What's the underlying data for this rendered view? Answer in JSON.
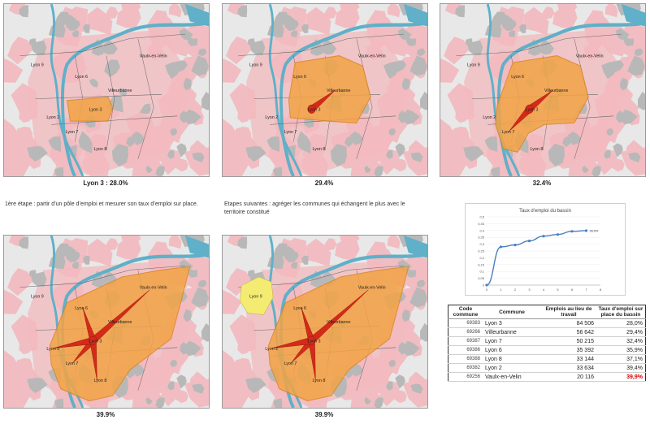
{
  "colors": {
    "background_map": "#e8e8e8",
    "urban_pink": "#f3b9be",
    "built_grey": "#b8b8b8",
    "river": "#5fb0c8",
    "basin_orange": "#f2a445",
    "basin_edge": "#d98420",
    "flows_red": "#d42a1a",
    "lyon9_yellow": "#f4ec72",
    "highlight_rate": "#d10000",
    "chart_line": "#4a7fc1"
  },
  "maps": [
    {
      "caption": "Lyon 3 : 28.0%",
      "labels": [
        "Lyon 9",
        "Lyon 6",
        "Vaulx-en-Velin",
        "Villeurbanne",
        "Lyon 3",
        "Lyon 2",
        "Lyon 7",
        "Lyon 8"
      ]
    },
    {
      "caption": "29.4%",
      "labels": [
        "Lyon 9",
        "Lyon 6",
        "Vaulx-en-Velin",
        "Villeurbanne",
        "Lyon 3",
        "Lyon 2",
        "Lyon 7",
        "Lyon 8"
      ]
    },
    {
      "caption": "32.4%",
      "labels": [
        "Lyon 9",
        "Lyon 6",
        "Vaulx-en-Velin",
        "Villeurbanne",
        "Lyon 3",
        "Lyon 2",
        "Lyon 7",
        "Lyon 8"
      ]
    },
    {
      "caption": "39.9%",
      "labels": [
        "Lyon 9",
        "Lyon 6",
        "Vaulx-en-Velin",
        "Villeurbanne",
        "Lyon 3",
        "Lyon 2",
        "Lyon 7",
        "Lyon 8"
      ]
    },
    {
      "caption": "39.9%",
      "labels": [
        "Lyon 9",
        "Lyon 6",
        "Vaulx-en-Velin",
        "Villeurbanne",
        "Lyon 3",
        "Lyon 2",
        "Lyon 7",
        "Lyon 8"
      ]
    }
  ],
  "notes": {
    "step1": "1ère étape : partir d’un pôle d’emploi et mesurer son taux d’emploi sur place.",
    "step2": "Etapes suivantes : agréger les communes qui échangent le plus avec le territoire constitué"
  },
  "chart_data": {
    "type": "line",
    "title": "Taux d'emploi du bassin",
    "x": [
      0,
      1,
      2,
      3,
      4,
      5,
      6,
      7
    ],
    "values": [
      0.0,
      0.28,
      0.294,
      0.324,
      0.359,
      0.371,
      0.394,
      0.399
    ],
    "end_label": "39,9%",
    "xlabel": "",
    "ylabel": "",
    "xlim": [
      0,
      8
    ],
    "ylim": [
      0,
      0.5
    ],
    "yticks": [
      "0",
      "0,05",
      "0,1",
      "0,15",
      "0,2",
      "0,25",
      "0,3",
      "0,35",
      "0,4",
      "0,45",
      "0,5"
    ],
    "xticks": [
      "0",
      "1",
      "2",
      "3",
      "4",
      "5",
      "6",
      "7",
      "8"
    ]
  },
  "table": {
    "headers": {
      "code": "Code commune",
      "commune": "Commune",
      "emplois": "Emplois au lieu de travail",
      "taux": "Taux d'emploi sur place du bassin"
    },
    "rows": [
      {
        "code": "69383",
        "commune": "Lyon 3",
        "emplois": "84 506",
        "taux": "28,0%"
      },
      {
        "code": "69266",
        "commune": "Villeurbanne",
        "emplois": "56 642",
        "taux": "29,4%"
      },
      {
        "code": "69387",
        "commune": "Lyon 7",
        "emplois": "50 215",
        "taux": "32,4%"
      },
      {
        "code": "69386",
        "commune": "Lyon 6",
        "emplois": "35 392",
        "taux": "35,9%"
      },
      {
        "code": "69388",
        "commune": "Lyon 8",
        "emplois": "33 144",
        "taux": "37,1%"
      },
      {
        "code": "69382",
        "commune": "Lyon 2",
        "emplois": "33 634",
        "taux": "39,4%"
      },
      {
        "code": "69256",
        "commune": "Vaulx-en-Velin",
        "emplois": "20 116",
        "taux": "39,9%"
      }
    ]
  }
}
